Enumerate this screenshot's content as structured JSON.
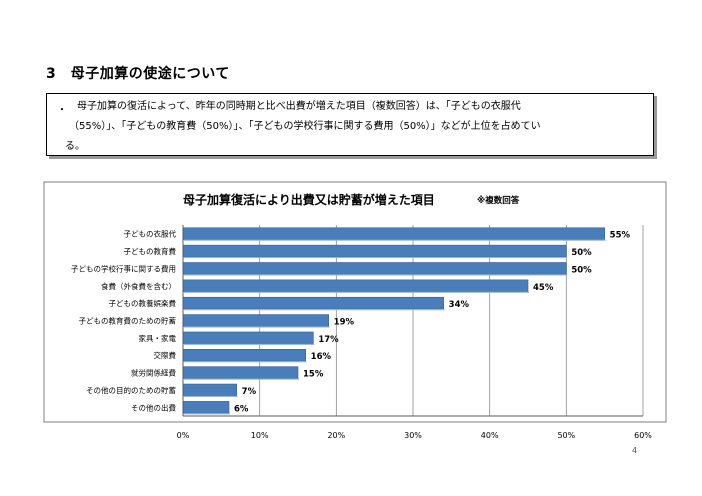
{
  "section_heading": "3　母子加算の使途について",
  "summary": {
    "bullet": "・",
    "lines": [
      "母子加算の復活によって、昨年の同時期と比べ出費が増えた項目（複数回答）は、「子どもの衣服代",
      "（55%）」、「子どもの教育費（50%）」、「子どもの学校行事に関する費用（50%）」などが上位を占めてい",
      "る。"
    ]
  },
  "chart_data": {
    "type": "bar",
    "orientation": "horizontal",
    "title": "母子加算復活により出費又は貯蓄が増えた項目",
    "note": "※複数回答",
    "categories": [
      "子どもの衣服代",
      "子どもの教育費",
      "子どもの学校行事に関する費用",
      "食費（外食費を含む）",
      "子どもの教養娯楽費",
      "子どもの教育費のための貯蓄",
      "家具・家電",
      "交際費",
      "就労関係経費",
      "その他の目的のための貯蓄",
      "その他の出費"
    ],
    "values": [
      55,
      50,
      50,
      45,
      34,
      19,
      17,
      16,
      15,
      7,
      6
    ],
    "value_labels": [
      "55%",
      "50%",
      "50%",
      "45%",
      "34%",
      "19%",
      "17%",
      "16%",
      "15%",
      "7%",
      "6%"
    ],
    "xlim": [
      0,
      60
    ],
    "x_ticks": [
      "0%",
      "10%",
      "20%",
      "30%",
      "40%",
      "50%",
      "60%"
    ],
    "grid": true,
    "bar_color": "#4a7ebb"
  },
  "page_number": "4"
}
